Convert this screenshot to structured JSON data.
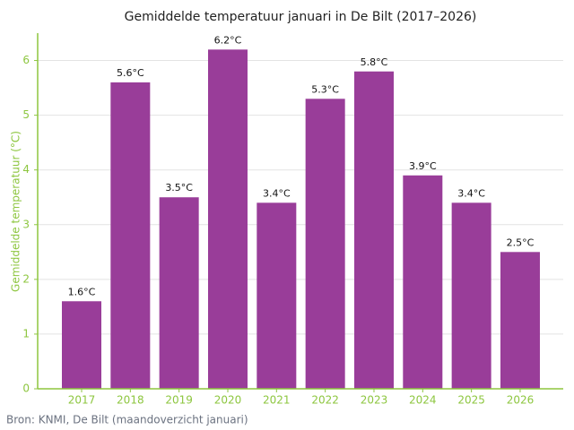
{
  "chart_data": {
    "type": "bar",
    "title": "Gemiddelde temperatuur januari in De Bilt (2017–2026)",
    "y_label": "Gemiddelde temperatuur (°C)",
    "source": "Bron: KNMI, De Bilt (maandoverzicht januari)",
    "categories": [
      "2017",
      "2018",
      "2019",
      "2020",
      "2021",
      "2022",
      "2023",
      "2024",
      "2025",
      "2026"
    ],
    "values": [
      1.6,
      5.6,
      3.5,
      6.2,
      3.4,
      5.3,
      5.8,
      3.9,
      3.4,
      2.5
    ],
    "value_labels": [
      "1.6°C",
      "5.6°C",
      "3.5°C",
      "6.2°C",
      "3.4°C",
      "5.3°C",
      "5.8°C",
      "3.9°C",
      "3.4°C",
      "2.5°C"
    ],
    "color": "#993d99",
    "ylim": [
      0,
      6.5
    ],
    "yticks": [
      0,
      1,
      2,
      3,
      4,
      5,
      6
    ],
    "grid": true
  }
}
